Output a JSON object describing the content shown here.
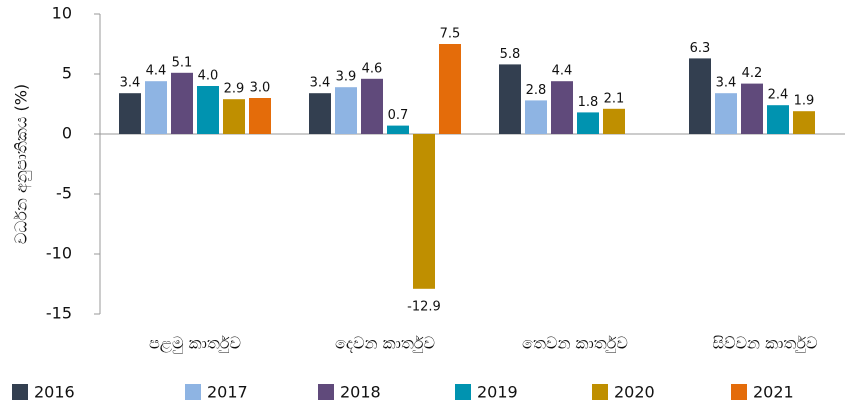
{
  "chart_data": {
    "type": "bar",
    "ylabel": "වර්ධන අනුපාතිකය (%)",
    "categories": [
      "පළමු කාර්තුව",
      "දෙවන කාර්තුව",
      "තෙවන කාර්තුව",
      "සිව්වන කාර්තුව"
    ],
    "ylim": [
      -15,
      10
    ],
    "yticks": [
      -15,
      -10,
      -5,
      0,
      5,
      10
    ],
    "legend": "bottom",
    "series": [
      {
        "name": "2016",
        "color": "#333f50",
        "values": [
          3.4,
          3.4,
          5.8,
          6.3
        ],
        "value_labels": [
          "3.4",
          "3.4",
          "5.8",
          "6.3"
        ]
      },
      {
        "name": "2017",
        "color": "#8eb4e3",
        "values": [
          4.4,
          3.9,
          2.8,
          3.4
        ],
        "value_labels": [
          "4.4",
          "3.9",
          "2.8",
          "3.4"
        ]
      },
      {
        "name": "2018",
        "color": "#604a7b",
        "values": [
          5.1,
          4.6,
          4.4,
          4.2
        ],
        "value_labels": [
          "5.1",
          "4.6",
          "4.4",
          "4.2"
        ]
      },
      {
        "name": "2019",
        "color": "#0093b0",
        "values": [
          4.0,
          0.7,
          1.8,
          2.4
        ],
        "value_labels": [
          "4.0",
          "0.7",
          "1.8",
          "2.4"
        ]
      },
      {
        "name": "2020",
        "color": "#bf8f00",
        "values": [
          2.9,
          -12.9,
          2.1,
          1.9
        ],
        "value_labels": [
          "2.9",
          "-12.9",
          "2.1",
          "1.9"
        ]
      },
      {
        "name": "2021",
        "color": "#e46c0a",
        "values": [
          3.0,
          7.5,
          null,
          null
        ],
        "value_labels": [
          "3.0",
          "7.5",
          null,
          null
        ]
      }
    ]
  }
}
